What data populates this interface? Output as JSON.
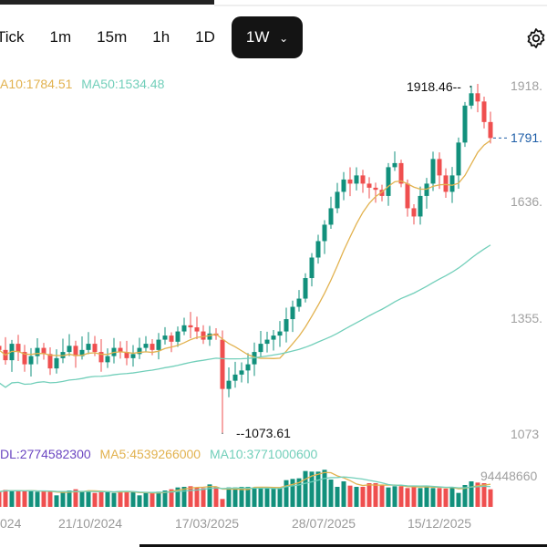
{
  "tabs": [
    {
      "label": "Tick"
    },
    {
      "label": "1m"
    },
    {
      "label": "15m"
    },
    {
      "label": "1h"
    },
    {
      "label": "1D"
    },
    {
      "label": "1W",
      "active": true
    }
  ],
  "settings_icon": "gear-icon",
  "price_legend": {
    "ma10": "A10:1784.51",
    "ma50": "MA50:1534.48"
  },
  "volume_legend": {
    "vol": "DL:2774582300",
    "ma5": "MA5:4539266000",
    "ma10": "MA10:3771000600"
  },
  "price_axis": [
    "1918.",
    "1636.",
    "1355.",
    "1073"
  ],
  "last_price": "1791.",
  "max_marker": "1918.46",
  "min_marker": "1073.61",
  "volume_axis": "94448660",
  "dates": [
    "024",
    "21/10/2024",
    "17/03/2025",
    "28/07/2025",
    "15/12/2025"
  ],
  "colors": {
    "up": "#12907c",
    "down": "#ef4f4f",
    "ma10": "#e2b24f",
    "ma50": "#72cfba",
    "vol": "#6b46c1",
    "last": "#1f5fa8"
  },
  "chart_data": {
    "type": "candlestick",
    "ylim": [
      1073,
      1918.46
    ],
    "closes": [
      1275,
      1250,
      1290,
      1270,
      1240,
      1260,
      1280,
      1265,
      1230,
      1255,
      1270,
      1285,
      1260,
      1275,
      1290,
      1270,
      1245,
      1260,
      1280,
      1270,
      1255,
      1265,
      1280,
      1290,
      1275,
      1300,
      1310,
      1295,
      1320,
      1335,
      1330,
      1320,
      1300,
      1315,
      1310,
      1180,
      1200,
      1215,
      1225,
      1240,
      1270,
      1290,
      1300,
      1310,
      1320,
      1350,
      1380,
      1400,
      1450,
      1500,
      1540,
      1580,
      1620,
      1660,
      1690,
      1680,
      1700,
      1680,
      1670,
      1665,
      1650,
      1720,
      1730,
      1680,
      1620,
      1600,
      1650,
      1680,
      1740,
      1700,
      1660,
      1700,
      1780,
      1870,
      1900,
      1880,
      1830,
      1791
    ],
    "volumes": [
      2500,
      2800,
      2700,
      2600,
      2600,
      2700,
      2500,
      2600,
      2500,
      1900,
      2400,
      2700,
      2900,
      2600,
      2700,
      2300,
      2400,
      2600,
      2300,
      2600,
      2500,
      2400,
      1900,
      2300,
      2400,
      2500,
      2700,
      2900,
      3200,
      3300,
      3400,
      3200,
      3100,
      3700,
      3300,
      1300,
      3200,
      3200,
      3300,
      3300,
      3100,
      3300,
      3200,
      3100,
      3200,
      4400,
      4600,
      4700,
      5900,
      5800,
      5800,
      6100,
      4500,
      3300,
      4200,
      3500,
      3300,
      3300,
      3900,
      3900,
      3600,
      3200,
      3400,
      3400,
      3100,
      3400,
      3100,
      3500,
      3100,
      3100,
      3000,
      3300,
      2300,
      3600,
      4200,
      4000,
      3900,
      2900
    ]
  }
}
